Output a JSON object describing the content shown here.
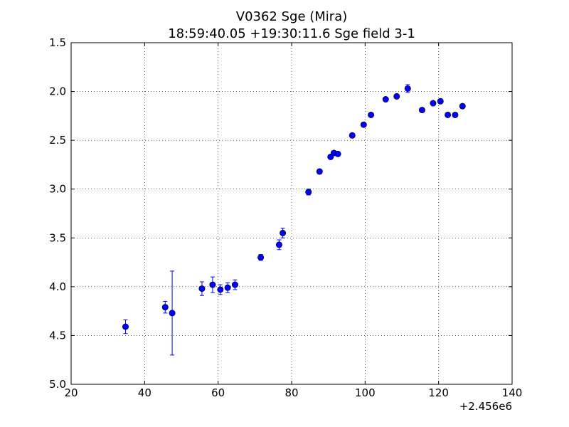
{
  "chart_data": {
    "type": "scatter",
    "title": "V0362 Sge (Mira)",
    "subtitle": "18:59:40.05 +19:30:11.6 Sge field 3-1",
    "xlabel": "",
    "ylabel": "",
    "x_offset_label": "+2.456e6",
    "xlim": [
      20,
      140
    ],
    "ylim": [
      5.0,
      1.5
    ],
    "y_inverted": true,
    "grid": true,
    "x_ticks": [
      20,
      40,
      60,
      80,
      100,
      120,
      140
    ],
    "x_tick_labels": [
      "20",
      "40",
      "60",
      "80",
      "100",
      "120",
      "140"
    ],
    "y_ticks": [
      1.5,
      2.0,
      2.5,
      3.0,
      3.5,
      4.0,
      4.5,
      5.0
    ],
    "y_tick_labels": [
      "1.5",
      "2.0",
      "2.5",
      "3.0",
      "3.5",
      "4.0",
      "4.5",
      "5.0"
    ],
    "marker_color": "#0000ff",
    "points": [
      {
        "x": 34.8,
        "y": 4.41,
        "err": 0.07
      },
      {
        "x": 45.6,
        "y": 4.21,
        "err": 0.06
      },
      {
        "x": 47.5,
        "y": 4.27,
        "err": 0.43
      },
      {
        "x": 55.6,
        "y": 4.02,
        "err": 0.07
      },
      {
        "x": 58.5,
        "y": 3.98,
        "err": 0.08
      },
      {
        "x": 60.6,
        "y": 4.03,
        "err": 0.05
      },
      {
        "x": 62.6,
        "y": 4.01,
        "err": 0.05
      },
      {
        "x": 64.6,
        "y": 3.98,
        "err": 0.05
      },
      {
        "x": 71.6,
        "y": 3.7,
        "err": 0.03
      },
      {
        "x": 76.6,
        "y": 3.57,
        "err": 0.05
      },
      {
        "x": 77.6,
        "y": 3.45,
        "err": 0.05
      },
      {
        "x": 84.6,
        "y": 3.03,
        "err": 0.03
      },
      {
        "x": 87.6,
        "y": 2.82,
        "err": 0.02
      },
      {
        "x": 90.6,
        "y": 2.67,
        "err": 0.02
      },
      {
        "x": 91.5,
        "y": 2.63,
        "err": 0.02
      },
      {
        "x": 92.6,
        "y": 2.64,
        "err": 0.02
      },
      {
        "x": 96.5,
        "y": 2.45,
        "err": 0.01
      },
      {
        "x": 99.6,
        "y": 2.34,
        "err": 0.01
      },
      {
        "x": 101.6,
        "y": 2.24,
        "err": 0.01
      },
      {
        "x": 105.6,
        "y": 2.08,
        "err": 0.01
      },
      {
        "x": 108.6,
        "y": 2.05,
        "err": 0.01
      },
      {
        "x": 111.6,
        "y": 1.97,
        "err": 0.04
      },
      {
        "x": 115.5,
        "y": 2.19,
        "err": 0.01
      },
      {
        "x": 118.5,
        "y": 2.12,
        "err": 0.01
      },
      {
        "x": 120.5,
        "y": 2.1,
        "err": 0.01
      },
      {
        "x": 122.5,
        "y": 2.24,
        "err": 0.01
      },
      {
        "x": 124.5,
        "y": 2.24,
        "err": 0.01
      },
      {
        "x": 126.5,
        "y": 2.15,
        "err": 0.01
      }
    ]
  }
}
